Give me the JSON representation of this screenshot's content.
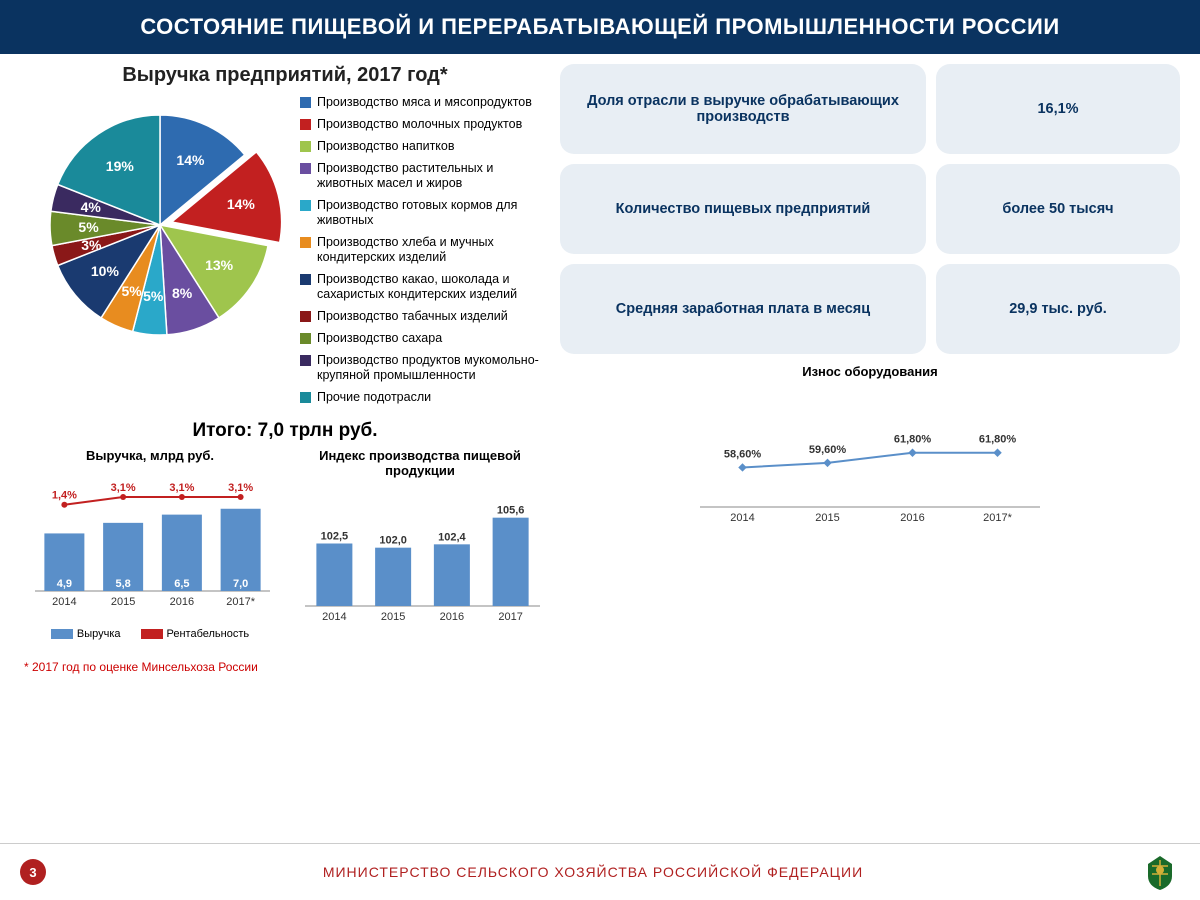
{
  "header": "СОСТОЯНИЕ ПИЩЕВОЙ И ПЕРЕРАБАТЫВАЮЩЕЙ ПРОМЫШЛЕННОСТИ РОССИИ",
  "pie": {
    "title": "Выручка предприятий, 2017 год*",
    "total": "Итого: 7,0 трлн руб.",
    "slices": [
      {
        "label": "Производство мяса и мясопродуктов",
        "value": 14,
        "color": "#2e6bb0",
        "text": "14%"
      },
      {
        "label": "Производство молочных продуктов",
        "value": 14,
        "color": "#c22020",
        "text": "14%",
        "explode": 12
      },
      {
        "label": "Производство напитков",
        "value": 13,
        "color": "#9fc54d",
        "text": "13%"
      },
      {
        "label": "Производство растительных и животных масел и жиров",
        "value": 8,
        "color": "#6a4ea0",
        "text": "8%"
      },
      {
        "label": "Производство готовых кормов для животных",
        "value": 5,
        "color": "#2aa8c9",
        "text": "5%"
      },
      {
        "label": "Производство хлеба и мучных кондитерских изделий",
        "value": 5,
        "color": "#e88c1f",
        "text": "5%"
      },
      {
        "label": "Производство какао, шоколада и сахаристых кондитерских изделий",
        "value": 10,
        "color": "#1a3a70",
        "text": "10%"
      },
      {
        "label": "Производство табачных изделий",
        "value": 3,
        "color": "#8a1818",
        "text": "3%"
      },
      {
        "label": "Производство сахара",
        "value": 5,
        "color": "#6a8a2a",
        "text": "5%"
      },
      {
        "label": "Производство продуктов мукомольно-крупяной промышленности",
        "value": 4,
        "color": "#3a2a60",
        "text": "4%"
      },
      {
        "label": "Прочие подотрасли",
        "value": 19,
        "color": "#1a8a9a",
        "text": "19%"
      }
    ]
  },
  "stats": [
    [
      "Доля отрасли в выручке обрабатывающих производств",
      "16,1%"
    ],
    [
      "Количество пищевых предприятий",
      "более 50 тысяч"
    ],
    [
      "Средняя заработная плата в месяц",
      "29,9 тыс. руб."
    ]
  ],
  "revenue_chart": {
    "title": "Выручка, млрд руб.",
    "years": [
      "2014",
      "2015",
      "2016",
      "2017*"
    ],
    "bars": [
      4.9,
      5.8,
      6.5,
      7.0
    ],
    "bar_labels": [
      "4,9",
      "5,8",
      "6,5",
      "7,0"
    ],
    "bar_color": "#5a8fc9",
    "line": [
      1.4,
      3.1,
      3.1,
      3.1
    ],
    "line_labels": [
      "1,4%",
      "3,1%",
      "3,1%",
      "3,1%"
    ],
    "line_color": "#c22020",
    "ymax": 8,
    "legend": [
      {
        "label": "Выручка",
        "color": "#5a8fc9"
      },
      {
        "label": "Рентабельность",
        "color": "#c22020"
      }
    ]
  },
  "index_chart": {
    "title": "Индекс производства пищевой продукции",
    "years": [
      "2014",
      "2015",
      "2016",
      "2017"
    ],
    "values": [
      102.5,
      102.0,
      102.4,
      105.6
    ],
    "labels": [
      "102,5",
      "102,0",
      "102,4",
      "105,6"
    ],
    "bar_color": "#5a8fc9",
    "ymin": 95,
    "ymax": 107
  },
  "wear_chart": {
    "title": "Износ оборудования",
    "years": [
      "2014",
      "2015",
      "2016",
      "2017*"
    ],
    "values": [
      58.6,
      59.6,
      61.8,
      61.8
    ],
    "labels": [
      "58,60%",
      "59,60%",
      "61,80%",
      "61,80%"
    ],
    "line_color": "#5a8fc9",
    "ymin": 50,
    "ymax": 70
  },
  "footnote": "* 2017 год по оценке Минсельхоза России",
  "footer": {
    "page": "3",
    "text": "МИНИСТЕРСТВО СЕЛЬСКОГО ХОЗЯЙСТВА РОССИЙСКОЙ ФЕДЕРАЦИИ"
  }
}
